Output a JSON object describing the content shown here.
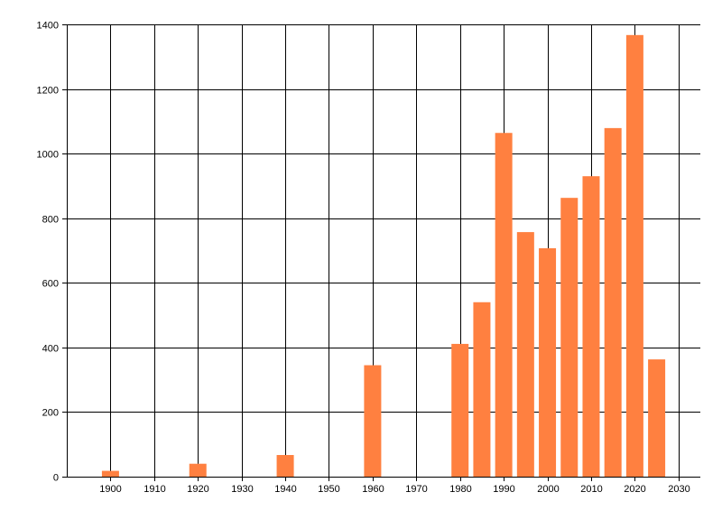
{
  "chart_data": {
    "type": "bar",
    "title": "",
    "xlabel": "",
    "ylabel": "",
    "x": [
      1900,
      1920,
      1940,
      1960,
      1980,
      1985,
      1990,
      1995,
      2000,
      2005,
      2010,
      2015,
      2020,
      2025
    ],
    "values": [
      18,
      40,
      67,
      345,
      411,
      540,
      1064,
      757,
      707,
      863,
      930,
      1079,
      1367,
      363
    ],
    "xlim": [
      1890,
      2035
    ],
    "ylim": [
      0,
      1400
    ],
    "x_ticks": [
      1900,
      1910,
      1920,
      1930,
      1940,
      1950,
      1960,
      1970,
      1980,
      1990,
      2000,
      2010,
      2020,
      2030
    ],
    "y_ticks": [
      0,
      200,
      400,
      600,
      800,
      1000,
      1200,
      1400
    ],
    "x_tick_labels": [
      "1900",
      "1910",
      "1920",
      "1930",
      "1940",
      "1950",
      "1960",
      "1970",
      "1980",
      "1990",
      "2000",
      "2010",
      "2020",
      "2030"
    ],
    "y_tick_labels": [
      "0",
      "200",
      "400",
      "600",
      "800",
      "1000",
      "1200",
      "1400"
    ],
    "bar_color": "#ff8040",
    "grid": true,
    "legend": "none"
  }
}
